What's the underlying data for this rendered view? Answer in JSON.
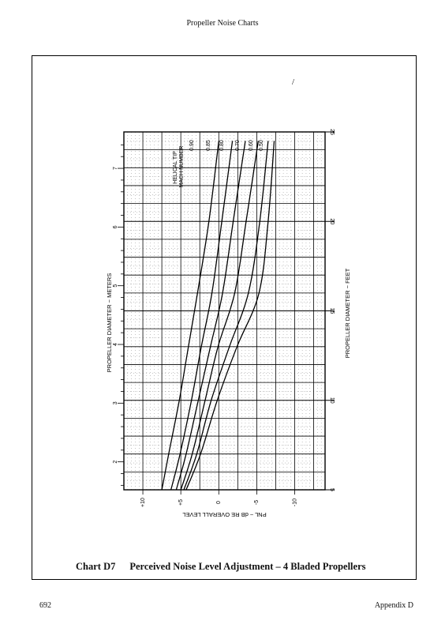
{
  "header": {
    "title": "Propeller Noise Charts"
  },
  "caption": {
    "label": "Chart D7",
    "text": "Perceived Noise Level Adjustment – 4 Bladed Propellers"
  },
  "footer": {
    "page_number": "692",
    "section": "Appendix D"
  },
  "stray_mark": "/",
  "chart_data": {
    "type": "line",
    "orientation": "rotated 90° counter-clockwise on page",
    "x_axis": {
      "label": "PNL ~ dB RE OVERALL LEVEL",
      "range": [
        12.5,
        -14
      ],
      "ticks": [
        10,
        5,
        0,
        -5,
        -10
      ],
      "tick_labels": [
        "+10",
        "+5",
        "0",
        "-5",
        "-10"
      ]
    },
    "y_axis_left": {
      "label": "PROPELLER DIAMETER ~ METERS",
      "range": [
        1.524,
        7.62
      ],
      "ticks": [
        2,
        3,
        4,
        5,
        6,
        7
      ],
      "tick_labels": [
        "2",
        "3",
        "4",
        "5",
        "6",
        "7"
      ]
    },
    "y_axis_right": {
      "label": "PROPELLER DIAMETER ~ FEET",
      "range": [
        5,
        25
      ],
      "ticks": [
        5,
        10,
        15,
        20,
        25
      ],
      "tick_labels": [
        "5",
        "10",
        "15",
        "20",
        "25"
      ]
    },
    "grid": true,
    "legend_title": "HELICAL TIP MACH NUMBER",
    "series": [
      {
        "name": "0.90",
        "x": [
          7.5,
          6.6,
          5.2,
          4.0,
          2.8,
          1.3,
          0.0
        ],
        "y": [
          5,
          7,
          10,
          13,
          16,
          20,
          24.5
        ]
      },
      {
        "name": "0.85",
        "x": [
          6.3,
          5.1,
          3.6,
          2.3,
          0.9,
          -0.4,
          -1.8
        ],
        "y": [
          5,
          7,
          10,
          13,
          16,
          20,
          24.5
        ]
      },
      {
        "name": "0.80",
        "x": [
          5.6,
          4.3,
          2.7,
          1.1,
          -0.5,
          -1.9,
          -3.5
        ],
        "y": [
          5,
          7,
          10,
          13,
          16,
          20,
          24.5
        ]
      },
      {
        "name": "0.70",
        "x": [
          5.0,
          3.5,
          1.8,
          0.1,
          -2.1,
          -3.6,
          -5.2
        ],
        "y": [
          5,
          7,
          10,
          13,
          16,
          20,
          24.5
        ]
      },
      {
        "name": "0.60",
        "x": [
          4.6,
          2.9,
          1.0,
          -1.4,
          -3.9,
          -5.4,
          -6.5
        ],
        "y": [
          5,
          7,
          10,
          13,
          16,
          20,
          24.5
        ]
      },
      {
        "name": "0.50",
        "x": [
          4.3,
          2.4,
          0.2,
          -2.4,
          -5.3,
          -6.5,
          -7.3
        ],
        "y": [
          5,
          7,
          10,
          13,
          16,
          20,
          24.5
        ]
      }
    ]
  }
}
